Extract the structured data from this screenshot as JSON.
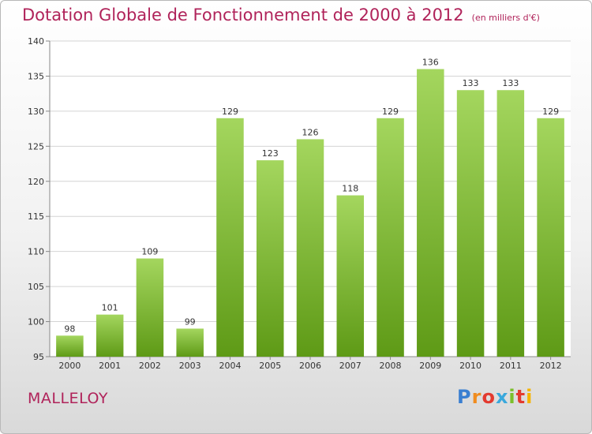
{
  "header": {
    "title": "Dotation Globale de Fonctionnement de 2000 à 2012",
    "unit": "(en milliers d'€)"
  },
  "footer": {
    "commune": "MALLELOY",
    "logo_letters": [
      "P",
      "r",
      "o",
      "x",
      "i",
      "t",
      "i"
    ],
    "logo_colors": [
      "#3a7fd1",
      "#f08c1e",
      "#e33a2f",
      "#3aa8dc",
      "#7bbf2a",
      "#e33a2f",
      "#f5b400"
    ]
  },
  "colors": {
    "accent": "#b0235a",
    "bar_light": "#a4d65e",
    "bar_dark": "#5e9a16"
  },
  "chart_data": {
    "type": "bar",
    "categories": [
      "2000",
      "2001",
      "2002",
      "2003",
      "2004",
      "2005",
      "2006",
      "2007",
      "2008",
      "2009",
      "2010",
      "2011",
      "2012"
    ],
    "values": [
      98,
      101,
      109,
      99,
      129,
      123,
      126,
      118,
      129,
      136,
      133,
      133,
      129
    ],
    "value_labels": [
      "98",
      "101",
      "109",
      "99",
      "129",
      "123",
      "126",
      "118",
      "129",
      "136",
      "133",
      "133",
      "129"
    ],
    "y_ticks": [
      "95",
      "100",
      "105",
      "110",
      "115",
      "120",
      "125",
      "130",
      "135",
      "140"
    ],
    "ylim": [
      95,
      140
    ],
    "grid": true
  }
}
